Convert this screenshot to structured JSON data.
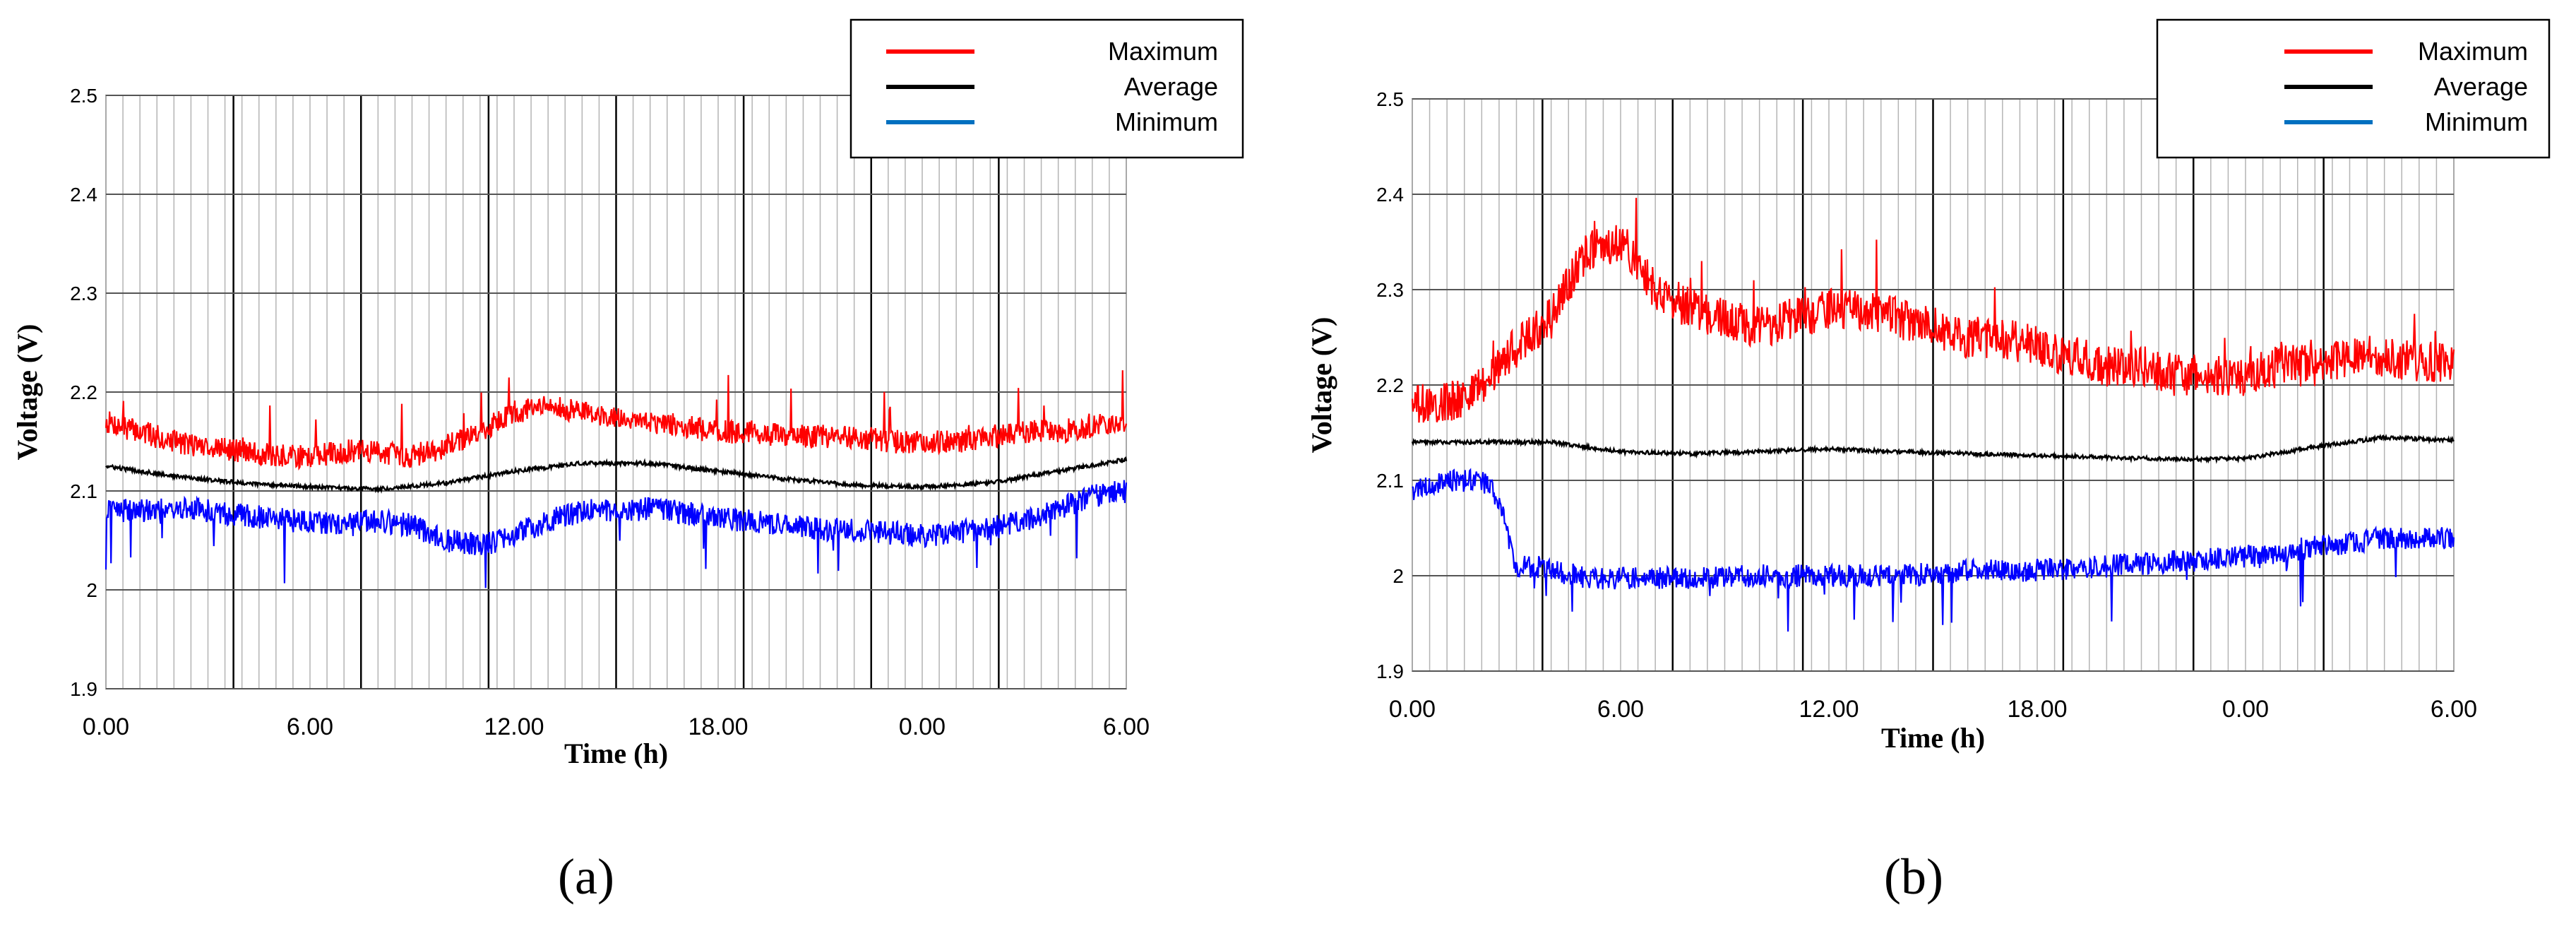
{
  "figure": {
    "panel_labels": [
      "(a)",
      "(b)"
    ]
  },
  "chart_data": [
    {
      "type": "line",
      "panel": "(a)",
      "xlabel": "Time (h)",
      "ylabel": "Voltage (V)",
      "ylim": [
        1.9,
        2.5
      ],
      "yticks": [
        "1.9",
        "2",
        "2.1",
        "2.2",
        "2.3",
        "2.4",
        "2.5"
      ],
      "xticks": [
        "0.00",
        "6.00",
        "12.00",
        "18.00",
        "0.00",
        "6.00"
      ],
      "xlim": [
        0,
        30
      ],
      "grid": true,
      "legend": "top-right",
      "series": [
        {
          "name": "Maximum",
          "color": "#ff0000",
          "x": [
            0,
            1,
            2,
            3,
            4,
            5,
            6,
            7,
            8,
            9,
            10,
            11,
            12,
            13,
            14,
            15,
            16,
            17,
            18,
            19,
            20,
            21,
            22,
            23,
            24,
            25,
            26,
            27,
            28,
            29,
            30
          ],
          "values": [
            2.17,
            2.16,
            2.15,
            2.145,
            2.14,
            2.135,
            2.135,
            2.14,
            2.14,
            2.135,
            2.145,
            2.16,
            2.18,
            2.185,
            2.18,
            2.175,
            2.17,
            2.165,
            2.16,
            2.16,
            2.155,
            2.155,
            2.155,
            2.15,
            2.15,
            2.15,
            2.155,
            2.16,
            2.16,
            2.165,
            2.17
          ]
        },
        {
          "name": "Average",
          "color": "#000000",
          "x": [
            0,
            2,
            4,
            6,
            8,
            10,
            12,
            14,
            16,
            18,
            20,
            22,
            24,
            26,
            28,
            30
          ],
          "values": [
            2.125,
            2.115,
            2.108,
            2.104,
            2.102,
            2.108,
            2.12,
            2.128,
            2.128,
            2.12,
            2.112,
            2.106,
            2.104,
            2.108,
            2.12,
            2.132
          ]
        },
        {
          "name": "Minimum",
          "color": "#0000ff",
          "x": [
            0,
            1,
            2,
            3,
            4,
            5,
            6,
            7,
            8,
            9,
            10,
            11,
            12,
            13,
            14,
            15,
            16,
            17,
            18,
            19,
            20,
            21,
            22,
            23,
            24,
            25,
            26,
            27,
            28,
            29,
            30
          ],
          "values": [
            2.08,
            2.08,
            2.082,
            2.08,
            2.075,
            2.072,
            2.068,
            2.065,
            2.07,
            2.065,
            2.05,
            2.045,
            2.055,
            2.07,
            2.08,
            2.08,
            2.082,
            2.078,
            2.072,
            2.07,
            2.065,
            2.062,
            2.06,
            2.058,
            2.055,
            2.058,
            2.062,
            2.07,
            2.082,
            2.095,
            2.1
          ]
        }
      ]
    },
    {
      "type": "line",
      "panel": "(b)",
      "xlabel": "Time (h)",
      "ylabel": "Voltage (V)",
      "ylim": [
        1.9,
        2.5
      ],
      "yticks": [
        "1.9",
        "2",
        "2.1",
        "2.2",
        "2.3",
        "2.4",
        "2.5"
      ],
      "xticks": [
        "0.00",
        "6.00",
        "12.00",
        "18.00",
        "0.00",
        "6.00"
      ],
      "xlim": [
        0,
        30
      ],
      "grid": true,
      "legend": "top-right",
      "series": [
        {
          "name": "Maximum",
          "color": "#ff0000",
          "x": [
            0,
            1,
            2,
            3,
            4,
            5,
            6,
            7,
            8,
            9,
            10,
            11,
            12,
            13,
            14,
            15,
            16,
            17,
            18,
            19,
            20,
            21,
            22,
            23,
            24,
            25,
            26,
            27,
            28,
            29,
            30
          ],
          "values": [
            2.18,
            2.18,
            2.2,
            2.24,
            2.27,
            2.34,
            2.35,
            2.3,
            2.28,
            2.27,
            2.26,
            2.27,
            2.28,
            2.28,
            2.27,
            2.26,
            2.25,
            2.25,
            2.24,
            2.23,
            2.22,
            2.22,
            2.21,
            2.21,
            2.21,
            2.22,
            2.22,
            2.23,
            2.23,
            2.225,
            2.225
          ]
        },
        {
          "name": "Average",
          "color": "#000000",
          "x": [
            0,
            2,
            4,
            6,
            8,
            10,
            12,
            14,
            16,
            18,
            20,
            22,
            24,
            26,
            28,
            30
          ],
          "values": [
            2.14,
            2.14,
            2.14,
            2.13,
            2.128,
            2.13,
            2.133,
            2.13,
            2.128,
            2.126,
            2.124,
            2.122,
            2.123,
            2.135,
            2.145,
            2.142
          ]
        },
        {
          "name": "Minimum",
          "color": "#0000ff",
          "x": [
            0,
            0.5,
            1,
            1.5,
            2,
            2.5,
            3,
            3.5,
            4,
            5,
            6,
            8,
            10,
            12,
            14,
            16,
            18,
            20,
            22,
            24,
            26,
            28,
            30
          ],
          "values": [
            2.09,
            2.095,
            2.1,
            2.1,
            2.1,
            2.08,
            2.01,
            2.01,
            2.005,
            1.998,
            1.997,
            1.998,
            2.0,
            2.0,
            2.0,
            2.005,
            2.006,
            2.01,
            2.015,
            2.02,
            2.03,
            2.04,
            2.04
          ]
        }
      ]
    }
  ]
}
